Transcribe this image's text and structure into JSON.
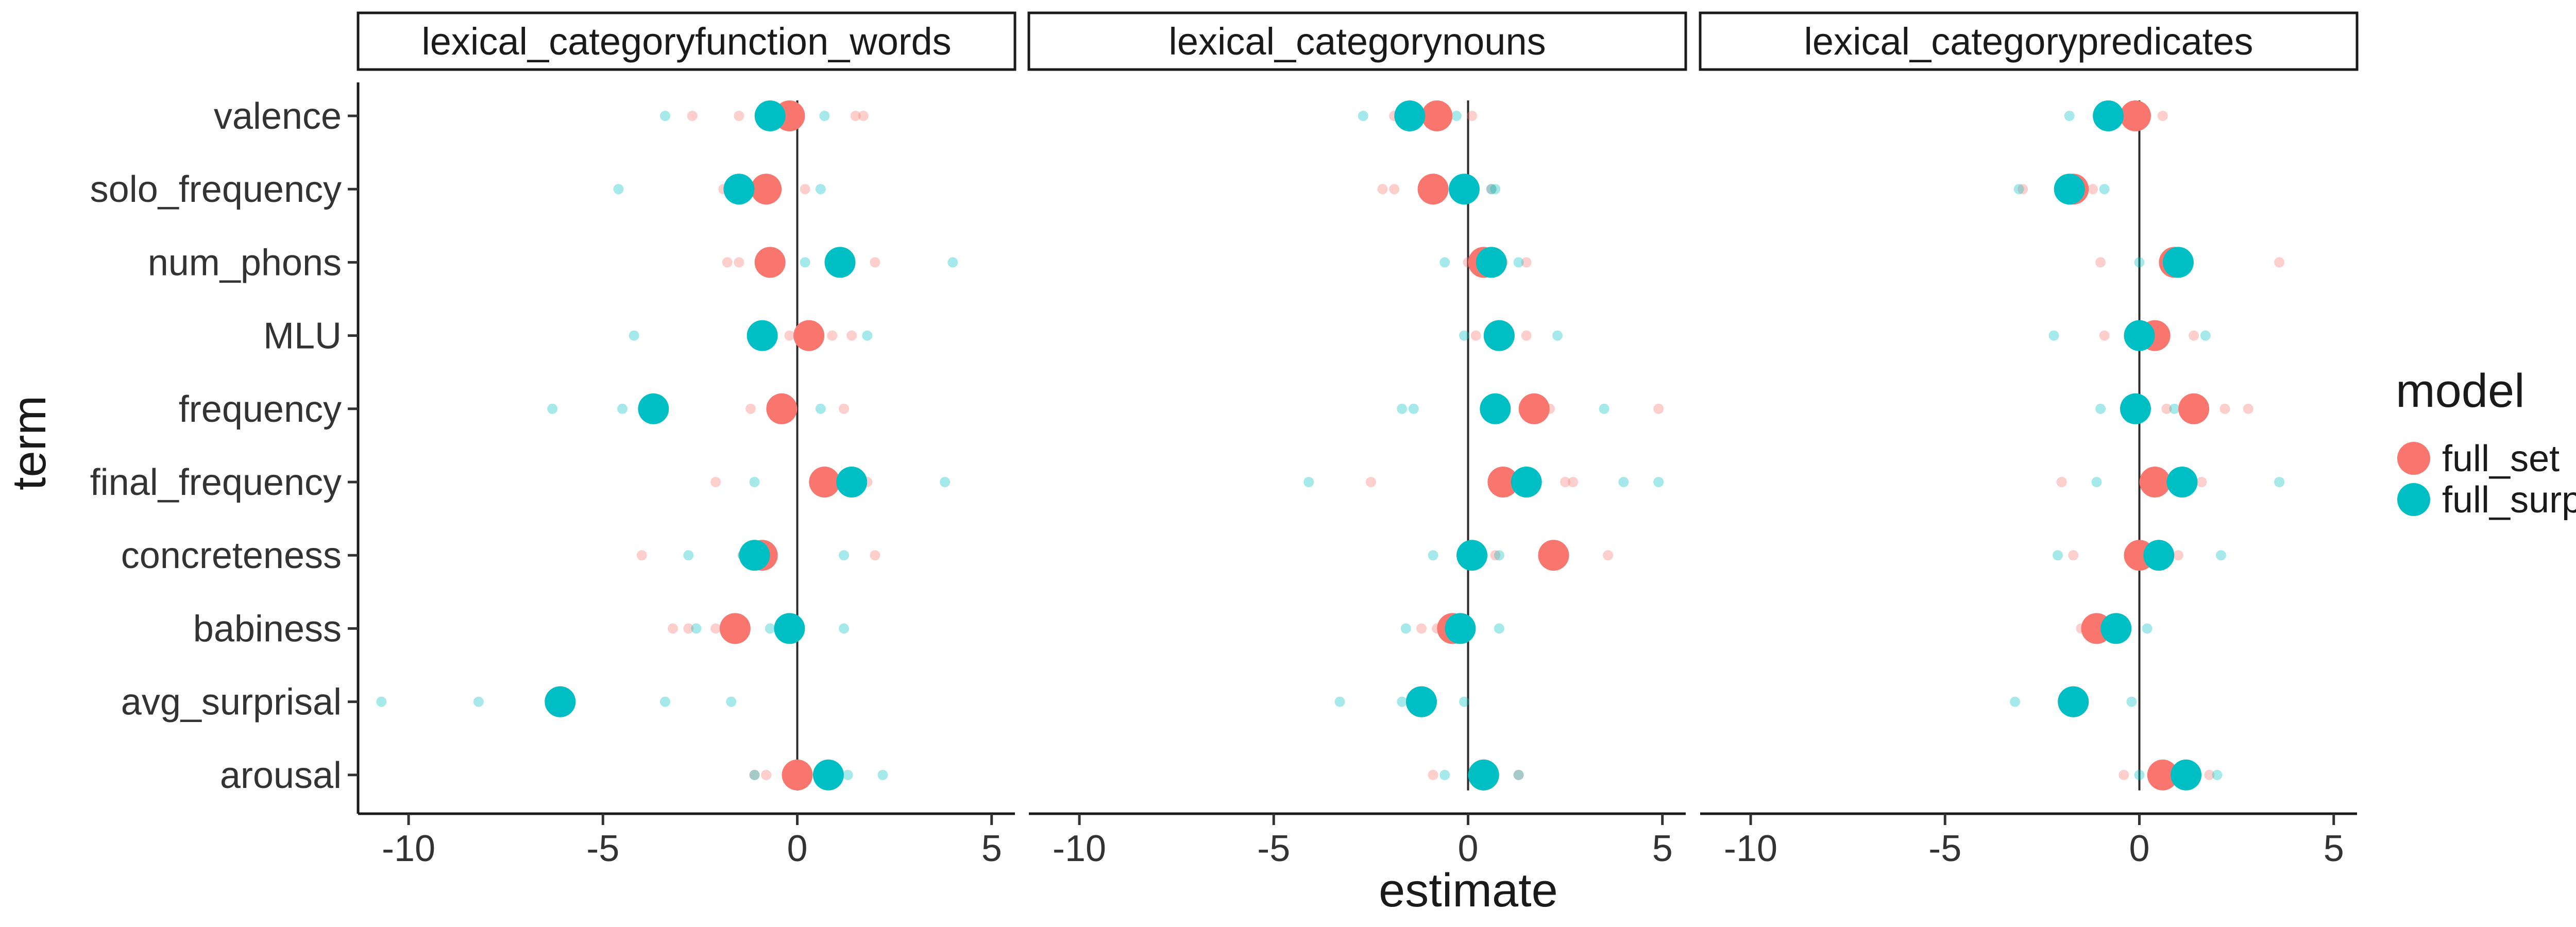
{
  "chart_data": {
    "type": "scatter",
    "xlabel": "estimate",
    "ylabel": "term",
    "xlim": [
      -11.3,
      5.6
    ],
    "x_ticks": [
      -10,
      -5,
      0,
      5
    ],
    "x_tick_labels": [
      "-10",
      "-5",
      "0",
      "5"
    ],
    "terms": [
      "valence",
      "solo_frequency",
      "num_phons",
      "MLU",
      "frequency",
      "final_frequency",
      "concreteness",
      "babiness",
      "avg_surprisal",
      "arousal"
    ],
    "reference_line": 0,
    "grid": false,
    "legend": {
      "title": "model",
      "position": "right",
      "entries": [
        {
          "name": "full_set",
          "color": "#F8766D"
        },
        {
          "name": "full_surp",
          "color": "#00BFC4"
        }
      ]
    },
    "panels": [
      {
        "title": "lexical_categoryfunction_words",
        "estimates": {
          "full_set": [
            -0.2,
            -0.8,
            -0.7,
            0.3,
            -0.4,
            0.7,
            -0.9,
            -1.6,
            -6.1,
            0.0
          ],
          "full_surp": [
            -0.7,
            -1.5,
            1.1,
            -0.9,
            -3.7,
            1.4,
            -1.1,
            -0.2,
            -6.1,
            0.8
          ]
        },
        "samples": {
          "full_set": [
            [
              -2.7,
              -1.5,
              1.5,
              1.7
            ],
            [
              -1.9,
              -1.2,
              0.2
            ],
            [
              -1.8,
              -1.5,
              2.0
            ],
            [
              -0.2,
              0.9,
              1.4
            ],
            [
              -1.2,
              1.2
            ],
            [
              -2.1,
              1.8
            ],
            [
              -4.0,
              -1.4,
              2.0
            ],
            [
              -3.2,
              -2.8,
              -2.1
            ],
            [],
            [
              -1.1,
              -0.8
            ]
          ],
          "full_surp": [
            [
              -3.4,
              0.7
            ],
            [
              -4.6,
              0.6
            ],
            [
              0.2,
              4.0
            ],
            [
              -4.2,
              1.8
            ],
            [
              -6.3,
              -4.5,
              0.6
            ],
            [
              -1.1,
              3.8
            ],
            [
              -2.8,
              -1.4,
              1.2
            ],
            [
              -2.6,
              -0.7,
              1.2
            ],
            [
              -10.7,
              -8.2,
              -3.4,
              -1.7
            ],
            [
              -1.1,
              1.3,
              2.2
            ]
          ]
        }
      },
      {
        "title": "lexical_categorynouns",
        "estimates": {
          "full_set": [
            -0.8,
            -0.9,
            0.4,
            0.8,
            1.7,
            0.9,
            2.2,
            -0.4,
            -1.2,
            0.4
          ],
          "full_surp": [
            -1.5,
            -0.1,
            0.6,
            0.8,
            0.7,
            1.5,
            0.1,
            -0.2,
            -1.2,
            0.4
          ]
        },
        "samples": {
          "full_set": [
            [
              -1.9,
              -1.3,
              -0.6,
              0.1
            ],
            [
              -2.2,
              -1.9,
              0.6
            ],
            [
              0.0,
              0.9,
              1.5
            ],
            [
              0.2,
              1.5
            ],
            [
              2.1,
              4.9
            ],
            [
              -2.5,
              2.5,
              2.7
            ],
            [
              0.7,
              3.6
            ],
            [
              -1.2,
              -0.8
            ],
            [],
            [
              -0.9,
              1.3
            ]
          ],
          "full_surp": [
            [
              -2.7,
              -0.3
            ],
            [
              0.6,
              0.7
            ],
            [
              -0.6,
              1.3
            ],
            [
              -0.1,
              2.3
            ],
            [
              -1.7,
              -1.4,
              3.5
            ],
            [
              -4.1,
              4.0,
              4.9
            ],
            [
              -0.9,
              0.8
            ],
            [
              -1.6,
              0.8
            ],
            [
              -3.3,
              -1.7,
              -0.1
            ],
            [
              -0.6,
              1.3
            ]
          ]
        }
      },
      {
        "title": "lexical_categorypredicates",
        "estimates": {
          "full_set": [
            -0.1,
            -1.7,
            0.9,
            0.4,
            1.4,
            0.4,
            0.0,
            -1.1,
            -1.7,
            0.6
          ],
          "full_surp": [
            -0.8,
            -1.8,
            1.0,
            0.0,
            -0.1,
            1.1,
            0.5,
            -0.6,
            -1.7,
            1.2
          ]
        },
        "samples": {
          "full_set": [
            [
              -1.0,
              0.6
            ],
            [
              -3.0,
              -1.2
            ],
            [
              -1.0,
              3.6
            ],
            [
              -0.9,
              1.4
            ],
            [
              0.7,
              2.2,
              2.8
            ],
            [
              -2.0,
              1.6
            ],
            [
              -1.7,
              1.0
            ],
            [
              -1.5,
              -0.9
            ],
            [],
            [
              -0.4,
              1.8
            ]
          ],
          "full_surp": [
            [
              -1.8,
              -0.3
            ],
            [
              -3.1,
              -0.9
            ],
            [
              0.0,
              1.2
            ],
            [
              -2.2,
              1.7
            ],
            [
              -1.0,
              0.9
            ],
            [
              -1.1,
              3.6
            ],
            [
              -2.1,
              2.1
            ],
            [
              -1.2,
              0.2
            ],
            [
              -3.2,
              -0.2
            ],
            [
              0.0,
              2.0
            ]
          ]
        }
      }
    ]
  }
}
